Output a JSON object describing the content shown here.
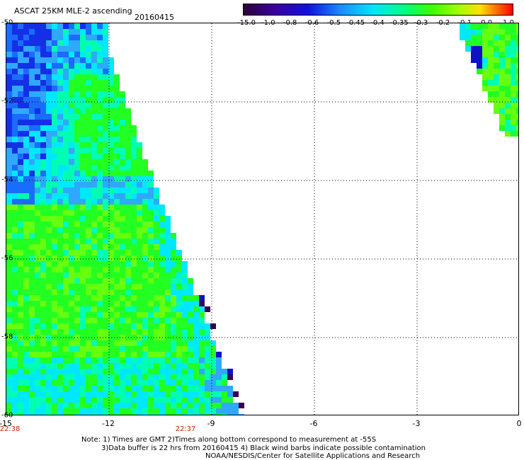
{
  "header": {
    "title": "ASCAT 25KM MLE-2 ascending",
    "date": "20160415"
  },
  "colorbar": {
    "labels": [
      "-15.0",
      "-1.0",
      "-0.8",
      "-0.6",
      "-0.5",
      "-0.45",
      "-0.4",
      "-0.35",
      "-0.3",
      "-0.2",
      "-0.1",
      "0.0",
      "1.0"
    ]
  },
  "map": {
    "y_labels": [
      "-50",
      "-52",
      "-54",
      "-56",
      "-58",
      "-60"
    ],
    "x_labels": [
      "-15",
      "-12",
      "-9",
      "-6",
      "-3",
      "0"
    ],
    "time_labels": [
      "22:38",
      "22:37"
    ],
    "lon_range": [
      -15,
      0
    ],
    "lat_range": [
      -60,
      -50
    ],
    "colors": {
      "grid": "#000000",
      "time_label": "#cc2200"
    }
  },
  "footer": {
    "line1": "Note: 1) Times are GMT 2)Times along bottom correspond to measurement at -55S",
    "line2": "3)Data buffer is 22 hrs from 20160415 4) Black wind barbs indicate possible contamination",
    "line3": "NOAA/NESDIS/Center for Satellite Applications and Research"
  }
}
